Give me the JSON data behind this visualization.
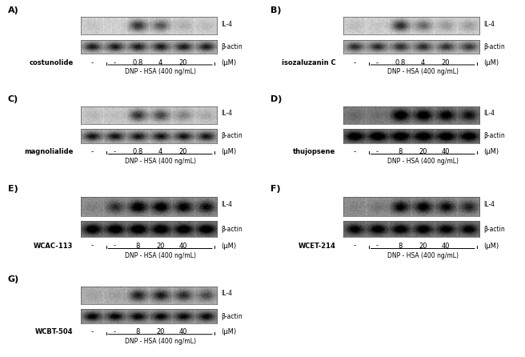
{
  "panels": [
    {
      "label": "A)",
      "compound": "costunolide",
      "doses_neg": "-",
      "doses_dnp": [
        "-",
        "0.8",
        "4",
        "20"
      ],
      "unit": "(μM)",
      "dnp_label": "DNP - HSA (400 ng/mL)",
      "il4_bands": [
        0.08,
        0.05,
        0.85,
        0.65,
        0.2,
        0.12
      ],
      "actin_bands": [
        0.85,
        0.85,
        0.85,
        0.85,
        0.85,
        0.85
      ],
      "il4_label": "IL-4",
      "actin_label": "β-actin",
      "col": 0,
      "row": 0,
      "gel_bg_il4": "#d0d0d0",
      "gel_bg_actin": "#b8b8b8",
      "compound_bold": true
    },
    {
      "label": "B)",
      "compound": "isozaluzanin C",
      "doses_neg": "-",
      "doses_dnp": [
        "-",
        "0.8",
        "4",
        "20"
      ],
      "unit": "(μM)",
      "dnp_label": "DNP - HSA (400 ng/mL)",
      "il4_bands": [
        0.12,
        0.06,
        0.88,
        0.55,
        0.3,
        0.28
      ],
      "actin_bands": [
        0.75,
        0.78,
        0.75,
        0.75,
        0.72,
        0.7
      ],
      "il4_label": "IL-4",
      "actin_label": "β-actin",
      "col": 1,
      "row": 0,
      "gel_bg_il4": "#d0d0d0",
      "gel_bg_actin": "#b8b8b8",
      "compound_bold": false
    },
    {
      "label": "C)",
      "compound": "magnolialide",
      "doses_neg": "-",
      "doses_dnp": [
        "-",
        "0.8",
        "4",
        "20"
      ],
      "unit": "(μM)",
      "dnp_label": "DNP - HSA (400 ng/mL)",
      "il4_bands": [
        0.1,
        0.06,
        0.82,
        0.7,
        0.38,
        0.18
      ],
      "actin_bands": [
        0.85,
        0.85,
        0.85,
        0.85,
        0.85,
        0.85
      ],
      "il4_label": "IL-4",
      "actin_label": "β-actin",
      "col": 0,
      "row": 1,
      "gel_bg_il4": "#c8c8c8",
      "gel_bg_actin": "#b0b0b0",
      "compound_bold": false
    },
    {
      "label": "D)",
      "compound": "thujopsene",
      "doses_neg": "-",
      "doses_dnp": [
        "-",
        "8",
        "20",
        "40"
      ],
      "unit": "(μM)",
      "dnp_label": "DNP - HSA (400 ng/mL)",
      "il4_bands": [
        0.15,
        0.1,
        0.9,
        0.88,
        0.8,
        0.65
      ],
      "actin_bands": [
        0.9,
        0.9,
        0.92,
        0.9,
        0.88,
        0.88
      ],
      "il4_label": "IL-4",
      "actin_label": "β-actin",
      "col": 1,
      "row": 1,
      "gel_bg_il4": "#808080",
      "gel_bg_actin": "#707070",
      "compound_bold": false
    },
    {
      "label": "E)",
      "compound": "WCAC-113",
      "doses_neg": "-",
      "doses_dnp": [
        "-",
        "8",
        "20",
        "40"
      ],
      "unit": "(μM)",
      "dnp_label": "DNP - HSA (400 ng/mL)",
      "il4_bands": [
        0.1,
        0.55,
        0.95,
        0.92,
        0.85,
        0.75
      ],
      "actin_bands": [
        0.88,
        0.92,
        0.95,
        0.92,
        0.9,
        0.88
      ],
      "il4_label": "IL-4",
      "actin_label": "β-actin",
      "col": 0,
      "row": 2,
      "gel_bg_il4": "#909090",
      "gel_bg_actin": "#787878",
      "compound_bold": false
    },
    {
      "label": "F)",
      "compound": "WCET-214",
      "doses_neg": "-",
      "doses_dnp": [
        "-",
        "8",
        "20",
        "40"
      ],
      "unit": "(μM)",
      "dnp_label": "DNP - HSA (400 ng/mL)",
      "il4_bands": [
        0.08,
        0.15,
        0.82,
        0.88,
        0.78,
        0.62
      ],
      "actin_bands": [
        0.75,
        0.8,
        0.82,
        0.8,
        0.76,
        0.75
      ],
      "il4_label": "IL-4",
      "actin_label": "β-actin",
      "col": 1,
      "row": 2,
      "gel_bg_il4": "#909090",
      "gel_bg_actin": "#787878",
      "compound_bold": false
    },
    {
      "label": "G)",
      "compound": "WCBT-504",
      "doses_neg": "-",
      "doses_dnp": [
        "-",
        "8",
        "20",
        "40"
      ],
      "unit": "(μM)",
      "dnp_label": "DNP - HSA (400 ng/mL)",
      "il4_bands": [
        0.08,
        0.1,
        0.78,
        0.82,
        0.72,
        0.55
      ],
      "actin_bands": [
        0.85,
        0.85,
        0.85,
        0.82,
        0.8,
        0.8
      ],
      "il4_label": "IL-4",
      "actin_label": "β-actin",
      "col": 0,
      "row": 3,
      "gel_bg_il4": "#b0b0b0",
      "gel_bg_actin": "#989898",
      "compound_bold": false
    }
  ],
  "bg_color": "#ffffff"
}
